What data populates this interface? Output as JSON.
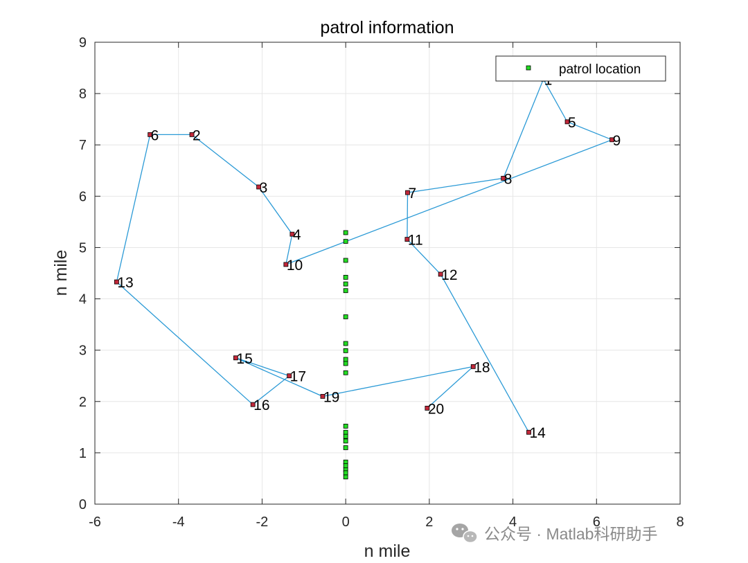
{
  "chart_data": {
    "type": "scatter",
    "title": "patrol information",
    "xlabel": "n mile",
    "ylabel": "n mile",
    "xlim": [
      -6,
      8
    ],
    "ylim": [
      0,
      9
    ],
    "xticks": [
      -6,
      -4,
      -2,
      0,
      2,
      4,
      6,
      8
    ],
    "yticks": [
      0,
      1,
      2,
      3,
      4,
      5,
      6,
      7,
      8,
      9
    ],
    "grid": true,
    "legend": {
      "location": "top-right",
      "entries": [
        "patrol location"
      ]
    },
    "colors": {
      "route": "#2b9ad6",
      "target_fill": "#c0283a",
      "patrol_fill": "#22dd22",
      "marker_edge": "#000000",
      "axis": "#262626",
      "grid": "#e6e6e6"
    },
    "targets": [
      {
        "id": "1",
        "x": 4.73,
        "y": 8.28
      },
      {
        "id": "2",
        "x": -3.68,
        "y": 7.2
      },
      {
        "id": "3",
        "x": -2.08,
        "y": 6.18
      },
      {
        "id": "4",
        "x": -1.28,
        "y": 5.26
      },
      {
        "id": "5",
        "x": 5.3,
        "y": 7.45
      },
      {
        "id": "6",
        "x": -4.68,
        "y": 7.2
      },
      {
        "id": "7",
        "x": 1.48,
        "y": 6.07
      },
      {
        "id": "8",
        "x": 3.77,
        "y": 6.35
      },
      {
        "id": "9",
        "x": 6.37,
        "y": 7.1
      },
      {
        "id": "10",
        "x": -1.43,
        "y": 4.67
      },
      {
        "id": "11",
        "x": 1.47,
        "y": 5.16
      },
      {
        "id": "12",
        "x": 2.27,
        "y": 4.48
      },
      {
        "id": "13",
        "x": -5.48,
        "y": 4.33
      },
      {
        "id": "14",
        "x": 4.38,
        "y": 1.4
      },
      {
        "id": "15",
        "x": -2.63,
        "y": 2.85
      },
      {
        "id": "16",
        "x": -2.22,
        "y": 1.94
      },
      {
        "id": "17",
        "x": -1.35,
        "y": 2.5
      },
      {
        "id": "18",
        "x": 3.05,
        "y": 2.68
      },
      {
        "id": "19",
        "x": -0.55,
        "y": 2.1
      },
      {
        "id": "20",
        "x": 1.95,
        "y": 1.87
      }
    ],
    "route": [
      "10",
      "9",
      "5",
      "1",
      "8",
      "7",
      "11",
      "12",
      "14"
    ],
    "route_b": [
      "20",
      "18",
      "19",
      "15",
      "17",
      "16",
      "13",
      "6",
      "2",
      "3",
      "4",
      "10"
    ],
    "patrol_locations": {
      "x": [
        0,
        0,
        0,
        0,
        0,
        0,
        0,
        0,
        0,
        0,
        0,
        0,
        0,
        0,
        0,
        0,
        0,
        0,
        0,
        0,
        0,
        0
      ],
      "y": [
        5.29,
        5.12,
        4.75,
        4.42,
        4.29,
        4.16,
        3.65,
        3.13,
        2.99,
        2.82,
        2.74,
        2.56,
        1.52,
        1.4,
        1.32,
        1.1,
        0.82,
        0.75,
        0.67,
        0.53,
        0.61,
        1.23
      ]
    }
  },
  "watermark": {
    "text": "公众号 · Matlab科研助手"
  }
}
